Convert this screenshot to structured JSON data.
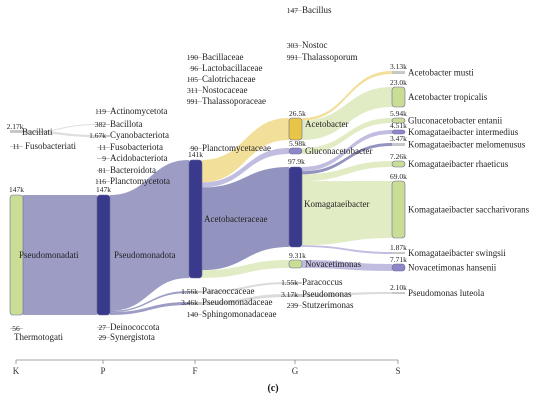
{
  "chart_data": {
    "type": "sankey",
    "caption": "(c)",
    "axis_labels": [
      "K",
      "P",
      "F",
      "G",
      "S"
    ],
    "nodes": [
      {
        "id": "K:Pseudomonadati",
        "name": "Pseudomonadati",
        "value": "147k",
        "color": "#c9dd94"
      },
      {
        "id": "K:Bacillati",
        "name": "Bacillati",
        "value": "2.17k",
        "color": "#8a7a2a"
      },
      {
        "id": "K:Fusobacteriati",
        "name": "Fusobacteriati",
        "value": "11",
        "color": "#999999"
      },
      {
        "id": "K:Thermotogati",
        "name": "Thermotogati",
        "value": "56",
        "color": "#999999"
      },
      {
        "id": "P:Pseudomonadota",
        "name": "Pseudomonadota",
        "value": "147k",
        "color": "#3a3a8c"
      },
      {
        "id": "P:Actinomycetota",
        "name": "Actinomycetota",
        "value": "119",
        "color": "#999999"
      },
      {
        "id": "P:Bacillota",
        "name": "Bacillota",
        "value": "382",
        "color": "#999999"
      },
      {
        "id": "P:Cyanobacteriota",
        "name": "Cyanobacteriota",
        "value": "1.67k",
        "color": "#999999"
      },
      {
        "id": "P:Fusobacteriota",
        "name": "Fusobacteriota",
        "value": "11",
        "color": "#999999"
      },
      {
        "id": "P:Acidobacteriota",
        "name": "Acidobacteriota",
        "value": "9",
        "color": "#999999"
      },
      {
        "id": "P:Bacteroidota",
        "name": "Bacteroidota",
        "value": "81",
        "color": "#999999"
      },
      {
        "id": "P:Planctomycetota",
        "name": "Planctomycetota",
        "value": "116",
        "color": "#999999"
      },
      {
        "id": "P:Deinococcota",
        "name": "Deinococcota",
        "value": "27",
        "color": "#999999"
      },
      {
        "id": "P:Synergistota",
        "name": "Synergistota",
        "value": "29",
        "color": "#999999"
      },
      {
        "id": "F:Acetobacteraceae",
        "name": "Acetobacteraceae",
        "value": "141k",
        "color": "#3a3a8c"
      },
      {
        "id": "F:Bacillaceae",
        "name": "Bacillaceae",
        "value": "190",
        "color": "#999999"
      },
      {
        "id": "F:Lactobacillaceae",
        "name": "Lactobacillaceae",
        "value": "96",
        "color": "#999999"
      },
      {
        "id": "F:Calotrichaceae",
        "name": "Calotrichaceae",
        "value": "105",
        "color": "#999999"
      },
      {
        "id": "F:Nostocaceae",
        "name": "Nostocaceae",
        "value": "311",
        "color": "#999999"
      },
      {
        "id": "F:Thalassoporaceae",
        "name": "Thalassoporaceae",
        "value": "991",
        "color": "#999999"
      },
      {
        "id": "F:Planctomycetaceae",
        "name": "Planctomycetaceae",
        "value": "90",
        "color": "#999999"
      },
      {
        "id": "F:Paracoccaceae",
        "name": "Paracoccaceae",
        "value": "1.56k",
        "color": "#3a3a8c"
      },
      {
        "id": "F:Pseudomonadaceae",
        "name": "Pseudomonadaceae",
        "value": "3.46k",
        "color": "#3a3a8c"
      },
      {
        "id": "F:Sphingomonadaceae",
        "name": "Sphingomonadaceae",
        "value": "140",
        "color": "#999999"
      },
      {
        "id": "G:Bacillus",
        "name": "Bacillus",
        "value": "147",
        "color": "#999999"
      },
      {
        "id": "G:Nostoc",
        "name": "Nostoc",
        "value": "303",
        "color": "#999999"
      },
      {
        "id": "G:Thalassoporum",
        "name": "Thalassoporum",
        "value": "991",
        "color": "#999999"
      },
      {
        "id": "G:Acetobacter",
        "name": "Acetobacter",
        "value": "26.5k",
        "color": "#e8c547"
      },
      {
        "id": "G:Gluconacetobacter",
        "name": "Gluconacetobacter",
        "value": "5.98k",
        "color": "#8e86c6"
      },
      {
        "id": "G:Komagataeibacter",
        "name": "Komagataeibacter",
        "value": "97.9k",
        "color": "#3a3a8c"
      },
      {
        "id": "G:Novacetimonas",
        "name": "Novacetimonas",
        "value": "9.31k",
        "color": "#c9dd94"
      },
      {
        "id": "G:Paracoccus",
        "name": "Paracoccus",
        "value": "1.55k",
        "color": "#999999"
      },
      {
        "id": "G:Pseudomonas",
        "name": "Pseudomonas",
        "value": "3.17k",
        "color": "#999999"
      },
      {
        "id": "G:Stutzerimonas",
        "name": "Stutzerimonas",
        "value": "239",
        "color": "#999999"
      },
      {
        "id": "S:Acetobacter musti",
        "name": "Acetobacter musti",
        "value": "3.13k",
        "color": "#e8c547"
      },
      {
        "id": "S:Acetobacter tropicalis",
        "name": "Acetobacter tropicalis",
        "value": "23.0k",
        "color": "#c9dd94"
      },
      {
        "id": "S:Gluconacetobacter entanii",
        "name": "Gluconacetobacter entanii",
        "value": "5.94k",
        "color": "#c9dd94"
      },
      {
        "id": "S:Komagataeibacter intermedius",
        "name": "Komagataeibacter intermedius",
        "value": "4.51k",
        "color": "#8e86c6"
      },
      {
        "id": "S:Komagataeibacter melomenusus",
        "name": "Komagataeibacter melomenusus",
        "value": "3.47k",
        "color": "#3a3a8c"
      },
      {
        "id": "S:Komagataeibacter rhaeticus",
        "name": "Komagataeibacter rhaeticus",
        "value": "7.26k",
        "color": "#c9dd94"
      },
      {
        "id": "S:Komagataeibacter saccharivorans",
        "name": "Komagataeibacter saccharivorans",
        "value": "69.0k",
        "color": "#c9dd94"
      },
      {
        "id": "S:Komagataeibacter swingsii",
        "name": "Komagataeibacter swingsii",
        "value": "1.87k",
        "color": "#8e86c6"
      },
      {
        "id": "S:Novacetimonas hansenii",
        "name": "Novacetimonas hansenii",
        "value": "7.71k",
        "color": "#8e86c6"
      },
      {
        "id": "S:Pseudomonas luteola",
        "name": "Pseudomonas luteola",
        "value": "2.10k",
        "color": "#999999"
      }
    ],
    "links": [
      {
        "source": "K:Pseudomonadati",
        "target": "P:Pseudomonadota",
        "value": 147000
      },
      {
        "source": "K:Bacillati",
        "target": "P:Cyanobacteriota",
        "value": 1670
      },
      {
        "source": "K:Bacillati",
        "target": "P:Bacillota",
        "value": 382
      },
      {
        "source": "P:Pseudomonadota",
        "target": "F:Acetobacteraceae",
        "value": 141000
      },
      {
        "source": "P:Pseudomonadota",
        "target": "F:Paracoccaceae",
        "value": 1560
      },
      {
        "source": "P:Pseudomonadota",
        "target": "F:Pseudomonadaceae",
        "value": 3460
      },
      {
        "source": "F:Acetobacteraceae",
        "target": "G:Acetobacter",
        "value": 26500
      },
      {
        "source": "F:Acetobacteraceae",
        "target": "G:Gluconacetobacter",
        "value": 5980
      },
      {
        "source": "F:Acetobacteraceae",
        "target": "G:Komagataeibacter",
        "value": 97900
      },
      {
        "source": "F:Acetobacteraceae",
        "target": "G:Novacetimonas",
        "value": 9310
      },
      {
        "source": "F:Paracoccaceae",
        "target": "G:Paracoccus",
        "value": 1550
      },
      {
        "source": "F:Pseudomonadaceae",
        "target": "G:Pseudomonas",
        "value": 3170
      },
      {
        "source": "G:Acetobacter",
        "target": "S:Acetobacter musti",
        "value": 3130
      },
      {
        "source": "G:Acetobacter",
        "target": "S:Acetobacter tropicalis",
        "value": 23000
      },
      {
        "source": "G:Gluconacetobacter",
        "target": "S:Gluconacetobacter entanii",
        "value": 5940
      },
      {
        "source": "G:Komagataeibacter",
        "target": "S:Komagataeibacter intermedius",
        "value": 4510
      },
      {
        "source": "G:Komagataeibacter",
        "target": "S:Komagataeibacter melomenusus",
        "value": 3470
      },
      {
        "source": "G:Komagataeibacter",
        "target": "S:Komagataeibacter rhaeticus",
        "value": 7260
      },
      {
        "source": "G:Komagataeibacter",
        "target": "S:Komagataeibacter saccharivorans",
        "value": 69000
      },
      {
        "source": "G:Komagataeibacter",
        "target": "S:Komagataeibacter swingsii",
        "value": 1870
      },
      {
        "source": "G:Novacetimonas",
        "target": "S:Novacetimonas hansenii",
        "value": 7710
      },
      {
        "source": "G:Pseudomonas",
        "target": "S:Pseudomonas luteola",
        "value": 2100
      }
    ]
  }
}
